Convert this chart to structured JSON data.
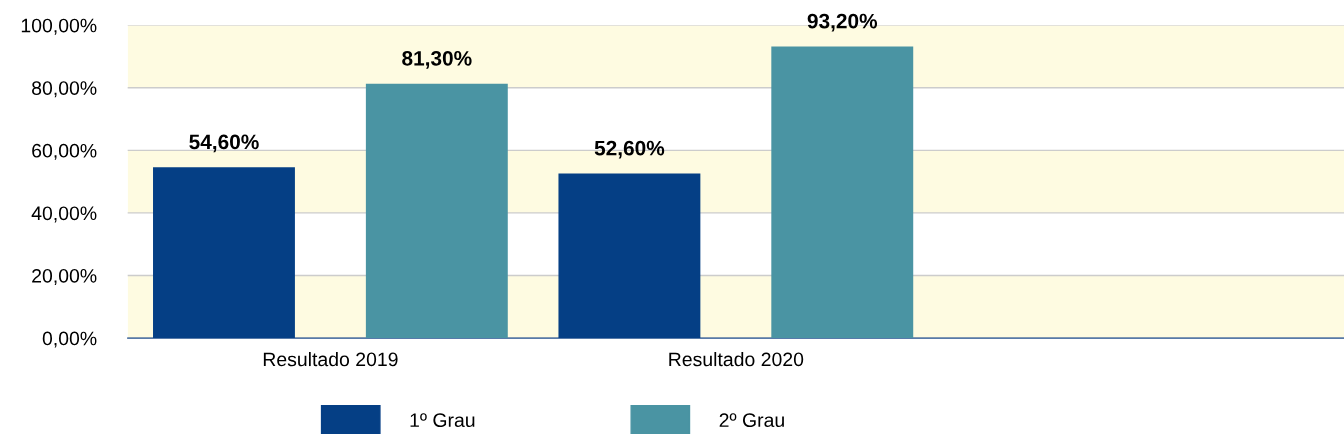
{
  "chart_data": {
    "type": "bar",
    "categories": [
      "Resultado 2019",
      "Resultado 2020",
      null
    ],
    "series": [
      {
        "name": "1º Grau",
        "color": "#053f85",
        "values": [
          54.6,
          52.6,
          null
        ]
      },
      {
        "name": "2º Grau",
        "color": "#4a94a3",
        "values": [
          81.3,
          93.2,
          null
        ]
      }
    ],
    "value_labels": [
      [
        "54,60%",
        "52,60%",
        null
      ],
      [
        "81,30%",
        "93,20%",
        null
      ]
    ],
    "ylim": [
      0,
      100
    ],
    "yticks": [
      {
        "value": 0,
        "label": "0,00%"
      },
      {
        "value": 20,
        "label": "20,00%"
      },
      {
        "value": 40,
        "label": "40,00%"
      },
      {
        "value": 60,
        "label": "60,00%"
      },
      {
        "value": 80,
        "label": "80,00%"
      },
      {
        "value": 100,
        "label": "100,00%"
      }
    ],
    "bands": [
      {
        "axis": "y",
        "from": 0,
        "to": 20,
        "color": "#fefbe1"
      },
      {
        "axis": "y",
        "from": 40,
        "to": 60,
        "color": "#fefbe1"
      },
      {
        "axis": "y",
        "from": 80,
        "to": 100,
        "color": "#fefbe1"
      }
    ],
    "grid": "y",
    "legend": "bottom"
  }
}
